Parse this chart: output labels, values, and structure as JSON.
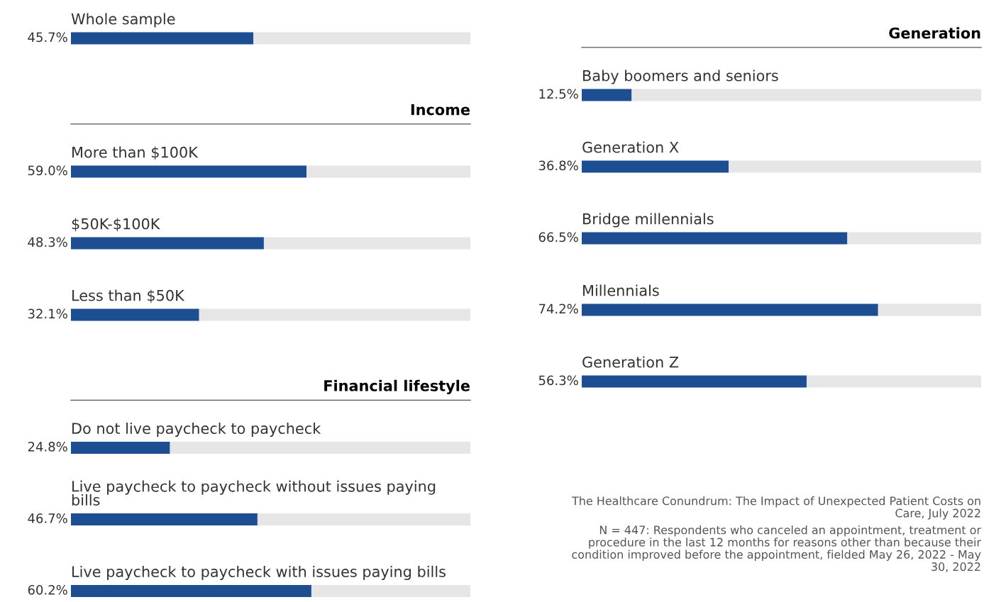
{
  "chart_data": [
    {
      "type": "bar",
      "orientation": "horizontal",
      "stacked": true,
      "categories": [
        "Whole sample"
      ],
      "xlim": [
        0,
        100
      ],
      "series": [
        {
          "color": "#1d4e91",
          "values": [
            45.7
          ],
          "value_labels": [
            "45.7%"
          ]
        },
        {
          "color": "#e6e6e6",
          "values": [
            54.3
          ]
        }
      ]
    },
    {
      "type": "bar",
      "orientation": "horizontal",
      "stacked": true,
      "title": "Income",
      "categories": [
        "More than $100K",
        "$50K-$100K",
        "Less than $50K"
      ],
      "xlim": [
        0,
        100
      ],
      "series": [
        {
          "color": "#1d4e91",
          "values": [
            59.0,
            48.3,
            32.1
          ],
          "value_labels": [
            "59.0%",
            "48.3%",
            "32.1%"
          ]
        },
        {
          "color": "#e6e6e6",
          "values": [
            41.0,
            51.7,
            67.9
          ]
        }
      ]
    },
    {
      "type": "bar",
      "orientation": "horizontal",
      "stacked": true,
      "title": "Financial lifestyle",
      "categories": [
        "Do not live paycheck to paycheck",
        "Live paycheck to paycheck without issues paying bills",
        "Live paycheck to paycheck with issues paying bills"
      ],
      "xlim": [
        0,
        100
      ],
      "series": [
        {
          "color": "#1d4e91",
          "values": [
            24.8,
            46.7,
            60.2
          ],
          "value_labels": [
            "24.8%",
            "46.7%",
            "60.2%"
          ]
        },
        {
          "color": "#e6e6e6",
          "values": [
            75.2,
            53.3,
            39.8
          ]
        }
      ]
    },
    {
      "type": "bar",
      "orientation": "horizontal",
      "stacked": true,
      "title": "Generation",
      "categories": [
        "Baby boomers and seniors",
        "Generation X",
        "Bridge millennials",
        "Millennials",
        "Generation Z"
      ],
      "xlim": [
        0,
        100
      ],
      "series": [
        {
          "color": "#1d4e91",
          "values": [
            12.5,
            36.8,
            66.5,
            74.2,
            56.3
          ],
          "value_labels": [
            "12.5%",
            "36.8%",
            "66.5%",
            "74.2%",
            "56.3%"
          ]
        },
        {
          "color": "#e6e6e6",
          "values": [
            87.5,
            63.2,
            33.5,
            25.8,
            43.7
          ]
        }
      ],
      "annotations": [
        "The Healthcare Conundrum: The Impact of Unexpected Patient Costs on Care, July 2022",
        "N = 447: Respondents who canceled an appointment, treatment or procedure in the last 12 months for reasons other than because their condition improved before the appointment, fielded May 26, 2022 - May 30, 2022"
      ]
    }
  ]
}
